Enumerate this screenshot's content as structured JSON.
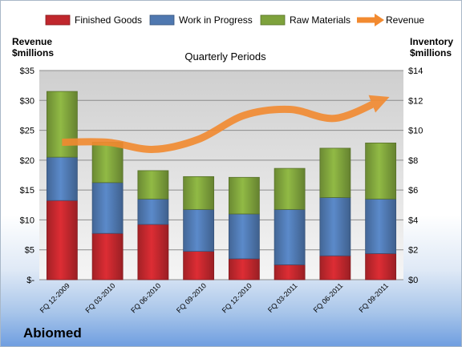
{
  "chart_data": {
    "type": "bar",
    "stacked": true,
    "title": "Quarterly Periods",
    "company": "Abiomed",
    "left_axis_label": [
      "Revenue",
      "$millions"
    ],
    "right_axis_label": [
      "Inventory",
      "$millions"
    ],
    "categories": [
      "FQ 12-2009",
      "FQ 03-2010",
      "FQ 06-2010",
      "FQ 09-2010",
      "FQ 12-2010",
      "FQ 03-2011",
      "FQ 06-2011",
      "FQ 09-2011"
    ],
    "left_ticks": [
      "$-",
      "$5",
      "$10",
      "$15",
      "$20",
      "$25",
      "$30",
      "$35"
    ],
    "right_ticks": [
      "$0",
      "$2",
      "$4",
      "$6",
      "$8",
      "$10",
      "$12",
      "$14"
    ],
    "left_ylim": [
      0,
      35
    ],
    "right_ylim": [
      0,
      14
    ],
    "grid": true,
    "legend_position": "top",
    "series": [
      {
        "name": "Finished Goods",
        "kind": "bar",
        "axis": "right",
        "color": "#c0272d",
        "values": [
          5.3,
          3.1,
          3.7,
          1.9,
          1.4,
          1.0,
          1.6,
          1.75
        ]
      },
      {
        "name": "Work in Progress",
        "kind": "bar",
        "axis": "right",
        "color": "#4f78b0",
        "values": [
          2.9,
          3.4,
          1.7,
          2.8,
          3.0,
          3.7,
          3.9,
          3.65
        ]
      },
      {
        "name": "Raw Materials",
        "kind": "bar",
        "axis": "right",
        "color": "#7ea23c",
        "values": [
          4.4,
          2.7,
          1.9,
          2.2,
          2.45,
          2.75,
          3.3,
          3.75
        ]
      },
      {
        "name": "Revenue",
        "kind": "line",
        "axis": "left",
        "color": "#f28a30",
        "values": [
          23.0,
          23.0,
          21.8,
          23.5,
          27.5,
          28.5,
          27.0,
          30.0
        ]
      }
    ]
  }
}
